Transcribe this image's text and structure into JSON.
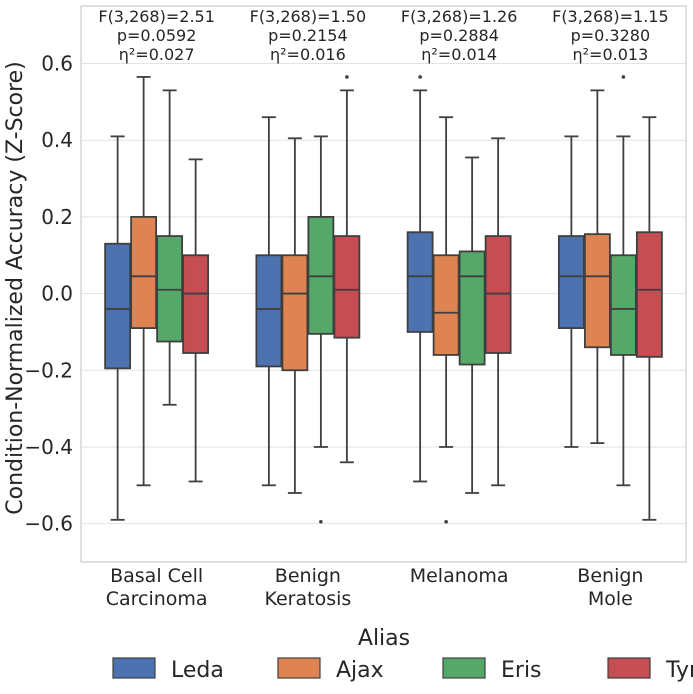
{
  "chart_data": {
    "type": "boxplot",
    "title": "",
    "ylabel": "Condition-Normalized Accuracy (Z-Score)",
    "xlabel": "",
    "ylim": [
      -0.7,
      0.75
    ],
    "yticks": [
      0.6,
      0.4,
      0.2,
      0.0,
      -0.2,
      -0.4,
      -0.6
    ],
    "ytick_labels": [
      "0.6",
      "0.4",
      "0.2",
      "0.0",
      "−0.2",
      "−0.4",
      "−0.6"
    ],
    "grid": true,
    "categories": [
      {
        "lines": [
          "Basal Cell",
          "Carcinoma"
        ]
      },
      {
        "lines": [
          "Benign",
          "Keratosis"
        ]
      },
      {
        "lines": [
          "Melanoma"
        ]
      },
      {
        "lines": [
          "Benign",
          "Mole"
        ]
      }
    ],
    "annotations": [
      {
        "f": "F(3,268)=2.51",
        "p": "p=0.0592",
        "eta": "η²=0.027"
      },
      {
        "f": "F(3,268)=1.50",
        "p": "p=0.2154",
        "eta": "η²=0.016"
      },
      {
        "f": "F(3,268)=1.26",
        "p": "p=0.2884",
        "eta": "η²=0.014"
      },
      {
        "f": "F(3,268)=1.15",
        "p": "p=0.3280",
        "eta": "η²=0.013"
      }
    ],
    "legend": {
      "title": "Alias",
      "placement": "bottom",
      "entries": [
        {
          "name": "Leda",
          "color": "#4c72b0"
        },
        {
          "name": "Ajax",
          "color": "#dd8452"
        },
        {
          "name": "Eris",
          "color": "#55a868"
        },
        {
          "name": "Tyro",
          "color": "#c44e52"
        }
      ]
    },
    "series": [
      {
        "name": "Leda",
        "color": "#4c72b0",
        "boxes": [
          {
            "min": -0.59,
            "q1": -0.195,
            "median": -0.04,
            "q3": 0.13,
            "max": 0.41,
            "outliers": []
          },
          {
            "min": -0.5,
            "q1": -0.19,
            "median": -0.04,
            "q3": 0.1,
            "max": 0.46,
            "outliers": []
          },
          {
            "min": -0.49,
            "q1": -0.1,
            "median": 0.045,
            "q3": 0.16,
            "max": 0.53,
            "outliers": [
              0.565
            ]
          },
          {
            "min": -0.4,
            "q1": -0.09,
            "median": 0.045,
            "q3": 0.15,
            "max": 0.41,
            "outliers": []
          }
        ]
      },
      {
        "name": "Ajax",
        "color": "#dd8452",
        "boxes": [
          {
            "min": -0.5,
            "q1": -0.09,
            "median": 0.045,
            "q3": 0.2,
            "max": 0.565,
            "outliers": []
          },
          {
            "min": -0.52,
            "q1": -0.2,
            "median": 0.0,
            "q3": 0.1,
            "max": 0.405,
            "outliers": []
          },
          {
            "min": -0.4,
            "q1": -0.16,
            "median": -0.05,
            "q3": 0.1,
            "max": 0.46,
            "outliers": [
              -0.595
            ]
          },
          {
            "min": -0.39,
            "q1": -0.14,
            "median": 0.045,
            "q3": 0.155,
            "max": 0.53,
            "outliers": []
          }
        ]
      },
      {
        "name": "Eris",
        "color": "#55a868",
        "boxes": [
          {
            "min": -0.29,
            "q1": -0.125,
            "median": 0.01,
            "q3": 0.15,
            "max": 0.53,
            "outliers": []
          },
          {
            "min": -0.4,
            "q1": -0.105,
            "median": 0.045,
            "q3": 0.2,
            "max": 0.41,
            "outliers": [
              -0.595
            ]
          },
          {
            "min": -0.52,
            "q1": -0.185,
            "median": 0.045,
            "q3": 0.11,
            "max": 0.355,
            "outliers": []
          },
          {
            "min": -0.5,
            "q1": -0.16,
            "median": -0.04,
            "q3": 0.1,
            "max": 0.41,
            "outliers": [
              0.565
            ]
          }
        ]
      },
      {
        "name": "Tyro",
        "color": "#c44e52",
        "boxes": [
          {
            "min": -0.49,
            "q1": -0.155,
            "median": 0.0,
            "q3": 0.1,
            "max": 0.35,
            "outliers": []
          },
          {
            "min": -0.44,
            "q1": -0.115,
            "median": 0.01,
            "q3": 0.15,
            "max": 0.53,
            "outliers": [
              0.565
            ]
          },
          {
            "min": -0.5,
            "q1": -0.155,
            "median": 0.0,
            "q3": 0.15,
            "max": 0.405,
            "outliers": []
          },
          {
            "min": -0.59,
            "q1": -0.165,
            "median": 0.01,
            "q3": 0.16,
            "max": 0.46,
            "outliers": []
          }
        ]
      }
    ]
  }
}
